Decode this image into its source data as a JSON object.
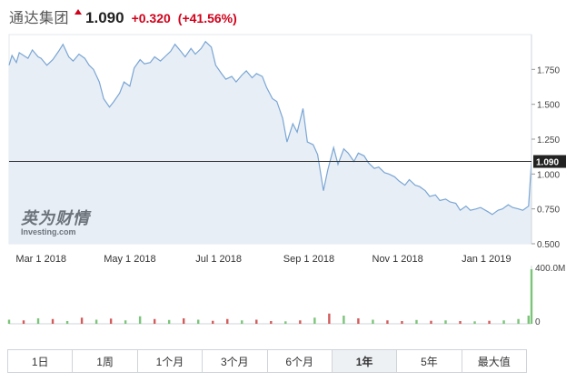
{
  "header": {
    "name": "通达集团",
    "price": "1.090",
    "change": "+0.320",
    "change_pct": "(+41.56%)"
  },
  "colors": {
    "line": "#7aa6d4",
    "area": "#e8eef6",
    "up": "#d0021b",
    "vol_up": "#7cc47a",
    "vol_down": "#d35b5b"
  },
  "watermark": {
    "cn": "英为财情",
    "en": "Investing.com"
  },
  "tabs": [
    {
      "label": "1日",
      "active": false
    },
    {
      "label": "1周",
      "active": false
    },
    {
      "label": "1个月",
      "active": false
    },
    {
      "label": "3个月",
      "active": false
    },
    {
      "label": "6个月",
      "active": false
    },
    {
      "label": "1年",
      "active": true
    },
    {
      "label": "5年",
      "active": false
    },
    {
      "label": "最大值",
      "active": false
    }
  ],
  "chart_data": {
    "type": "area",
    "title": "",
    "xlabel": "",
    "ylabel": "",
    "ylim": [
      0.5,
      2.0
    ],
    "y_ticks": [
      "1.750",
      "1.500",
      "1.250",
      "1.000",
      "0.750",
      "0.500"
    ],
    "x_ticks": [
      "Mar 1 2018",
      "May 1 2018",
      "Jul 1 2018",
      "Sep 1 2018",
      "Nov 1 2018",
      "Jan 1 2019"
    ],
    "x_range": [
      "2018-02-07",
      "2019-02-01"
    ],
    "last_price_label": "1.090",
    "last_price": 1.09,
    "grid": false,
    "series": [
      {
        "x": [
          "2018-02-07",
          "2018-02-09",
          "2018-02-12",
          "2018-02-14",
          "2018-02-20",
          "2018-02-23",
          "2018-02-27",
          "2018-03-01",
          "2018-03-05",
          "2018-03-09",
          "2018-03-13",
          "2018-03-16",
          "2018-03-20",
          "2018-03-23",
          "2018-03-27",
          "2018-03-31",
          "2018-04-03",
          "2018-04-06",
          "2018-04-10",
          "2018-04-13",
          "2018-04-17",
          "2018-04-20",
          "2018-04-24",
          "2018-04-27",
          "2018-05-01",
          "2018-05-04",
          "2018-05-08",
          "2018-05-11",
          "2018-05-15",
          "2018-05-18",
          "2018-05-22",
          "2018-05-25",
          "2018-05-29",
          "2018-06-01",
          "2018-06-05",
          "2018-06-08",
          "2018-06-12",
          "2018-06-15",
          "2018-06-19",
          "2018-06-22",
          "2018-06-26",
          "2018-06-29",
          "2018-07-03",
          "2018-07-06",
          "2018-07-10",
          "2018-07-13",
          "2018-07-17",
          "2018-07-20",
          "2018-07-24",
          "2018-07-27",
          "2018-07-31",
          "2018-08-03",
          "2018-08-07",
          "2018-08-10",
          "2018-08-14",
          "2018-08-17",
          "2018-08-21",
          "2018-08-24",
          "2018-08-28",
          "2018-08-31",
          "2018-09-04",
          "2018-09-07",
          "2018-09-11",
          "2018-09-14",
          "2018-09-18",
          "2018-09-21",
          "2018-09-25",
          "2018-09-28",
          "2018-10-02",
          "2018-10-05",
          "2018-10-09",
          "2018-10-12",
          "2018-10-16",
          "2018-10-19",
          "2018-10-23",
          "2018-10-26",
          "2018-10-30",
          "2018-11-02",
          "2018-11-06",
          "2018-11-09",
          "2018-11-13",
          "2018-11-16",
          "2018-11-20",
          "2018-11-23",
          "2018-11-27",
          "2018-11-30",
          "2018-12-04",
          "2018-12-07",
          "2018-12-11",
          "2018-12-14",
          "2018-12-18",
          "2018-12-21",
          "2018-12-25",
          "2018-12-28",
          "2019-01-02",
          "2019-01-05",
          "2019-01-09",
          "2019-01-12",
          "2019-01-16",
          "2019-01-19",
          "2019-01-23",
          "2019-01-26",
          "2019-01-30",
          "2019-02-01"
        ],
        "y": [
          1.78,
          1.85,
          1.8,
          1.87,
          1.83,
          1.89,
          1.84,
          1.83,
          1.78,
          1.82,
          1.88,
          1.93,
          1.84,
          1.81,
          1.86,
          1.83,
          1.78,
          1.75,
          1.66,
          1.54,
          1.48,
          1.52,
          1.58,
          1.66,
          1.63,
          1.76,
          1.82,
          1.79,
          1.8,
          1.84,
          1.81,
          1.84,
          1.88,
          1.93,
          1.88,
          1.84,
          1.9,
          1.86,
          1.9,
          1.95,
          1.91,
          1.78,
          1.72,
          1.68,
          1.7,
          1.66,
          1.71,
          1.74,
          1.69,
          1.72,
          1.7,
          1.62,
          1.54,
          1.52,
          1.4,
          1.23,
          1.36,
          1.3,
          1.47,
          1.23,
          1.21,
          1.14,
          0.88,
          1.03,
          1.19,
          1.07,
          1.18,
          1.15,
          1.09,
          1.15,
          1.13,
          1.08,
          1.04,
          1.05,
          1.01,
          1.0,
          0.98,
          0.95,
          0.92,
          0.96,
          0.92,
          0.91,
          0.88,
          0.84,
          0.85,
          0.81,
          0.82,
          0.8,
          0.79,
          0.74,
          0.77,
          0.74,
          0.75,
          0.76,
          0.73,
          0.71,
          0.74,
          0.75,
          0.78,
          0.76,
          0.75,
          0.74,
          0.77,
          1.09
        ]
      }
    ],
    "volume": {
      "ylim_label_max": "400.0M",
      "ylim_label_min": "0",
      "ylim": [
        0,
        400
      ],
      "x": [
        "2018-02-07",
        "2018-02-17",
        "2018-02-27",
        "2018-03-09",
        "2018-03-19",
        "2018-03-29",
        "2018-04-08",
        "2018-04-18",
        "2018-04-28",
        "2018-05-08",
        "2018-05-18",
        "2018-05-28",
        "2018-06-07",
        "2018-06-17",
        "2018-06-27",
        "2018-07-07",
        "2018-07-17",
        "2018-07-27",
        "2018-08-06",
        "2018-08-16",
        "2018-08-26",
        "2018-09-05",
        "2018-09-15",
        "2018-09-25",
        "2018-10-05",
        "2018-10-15",
        "2018-10-25",
        "2018-11-04",
        "2018-11-14",
        "2018-11-24",
        "2018-12-04",
        "2018-12-14",
        "2018-12-24",
        "2019-01-03",
        "2019-01-13",
        "2019-01-23",
        "2019-01-30",
        "2019-02-01"
      ],
      "values": [
        30,
        25,
        40,
        35,
        20,
        45,
        30,
        38,
        25,
        55,
        35,
        28,
        40,
        30,
        22,
        35,
        25,
        30,
        20,
        18,
        25,
        45,
        75,
        60,
        40,
        30,
        25,
        20,
        28,
        22,
        25,
        20,
        18,
        22,
        25,
        35,
        60,
        400
      ],
      "up": [
        true,
        false,
        true,
        false,
        true,
        false,
        true,
        false,
        true,
        true,
        false,
        true,
        false,
        true,
        false,
        false,
        true,
        false,
        false,
        true,
        false,
        true,
        false,
        true,
        false,
        true,
        false,
        false,
        true,
        false,
        true,
        false,
        true,
        false,
        true,
        true,
        true,
        true
      ]
    }
  }
}
